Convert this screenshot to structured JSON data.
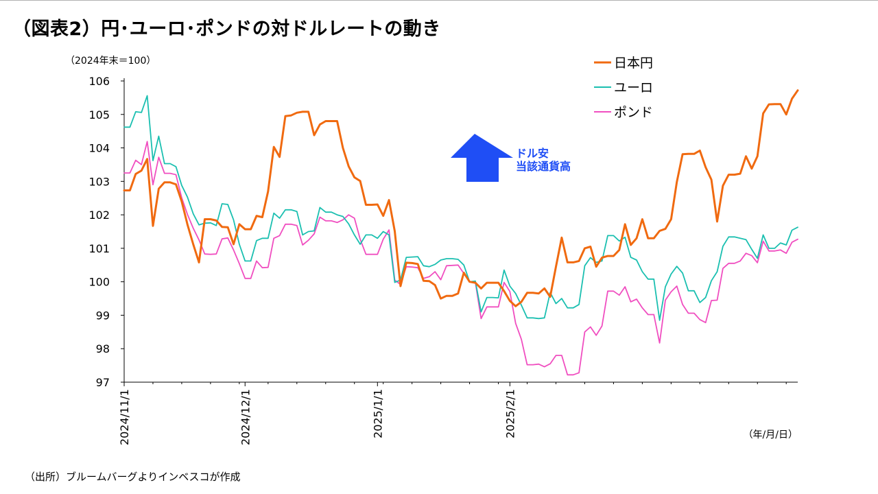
{
  "title": "（図表2）円･ユーロ･ポンドの対ドルレートの動き",
  "source": "（出所）ブルームバーグよりインベスコが作成",
  "chart_data": {
    "type": "line",
    "unit_note": "（2024年末＝100）",
    "x_unit_note": "（年/月/日）",
    "ylim": [
      97,
      106
    ],
    "y_ticks": [
      97,
      98,
      99,
      100,
      101,
      102,
      103,
      104,
      105,
      106
    ],
    "x_ticks": [
      "2024/11/1",
      "2024/12/1",
      "2025/1/1",
      "2025/2/1"
    ],
    "x_tick_index": [
      0,
      21,
      44,
      67
    ],
    "grid": false,
    "legend_position": "top-right",
    "annotation": {
      "text_line1": "ドル安",
      "text_line2": "当該通貨高",
      "direction": "up",
      "color": "#1f4ef5"
    },
    "series": [
      {
        "name": "日本円",
        "color": "#f06a10",
        "values": [
          102.73,
          102.73,
          103.22,
          103.32,
          103.67,
          101.67,
          102.78,
          102.97,
          102.97,
          102.91,
          102.4,
          101.71,
          101.12,
          100.58,
          101.87,
          101.87,
          101.83,
          101.64,
          101.63,
          101.12,
          101.72,
          101.57,
          101.57,
          101.97,
          101.93,
          102.7,
          104.03,
          103.73,
          104.95,
          104.97,
          105.05,
          105.08,
          105.08,
          104.38,
          104.7,
          104.8,
          104.8,
          104.8,
          104.0,
          103.45,
          103.12,
          103.01,
          102.3,
          102.3,
          102.31,
          101.97,
          102.44,
          101.51,
          99.87,
          100.57,
          100.56,
          100.53,
          100.03,
          100.02,
          99.9,
          99.5,
          99.58,
          99.58,
          99.65,
          100.27,
          100.0,
          99.97,
          99.8,
          99.97,
          99.97,
          99.97,
          99.72,
          99.43,
          99.27,
          99.4,
          99.67,
          99.67,
          99.65,
          99.8,
          99.55,
          100.45,
          101.32,
          100.58,
          100.58,
          100.62,
          101.0,
          101.05,
          100.45,
          100.72,
          100.77,
          100.77,
          100.95,
          101.72,
          101.1,
          101.3,
          101.87,
          101.3,
          101.3,
          101.52,
          101.58,
          101.87,
          102.98,
          103.81,
          103.82,
          103.82,
          103.92,
          103.42,
          103.05,
          101.8,
          102.87,
          103.2,
          103.2,
          103.23,
          103.75,
          103.38,
          103.75,
          105.03,
          105.3,
          105.31,
          105.31,
          105.0,
          105.47,
          105.72
        ]
      },
      {
        "name": "ユーロ",
        "color": "#1abfb0",
        "values": [
          104.62,
          104.62,
          105.08,
          105.06,
          105.56,
          103.62,
          104.35,
          103.53,
          103.53,
          103.44,
          102.88,
          102.53,
          102.03,
          101.7,
          101.75,
          101.76,
          101.68,
          102.33,
          102.31,
          101.85,
          101.12,
          100.62,
          100.62,
          101.23,
          101.3,
          101.3,
          102.05,
          101.9,
          102.15,
          102.15,
          102.1,
          101.4,
          101.5,
          101.52,
          102.22,
          102.08,
          102.08,
          102.0,
          101.95,
          101.73,
          101.4,
          101.12,
          101.4,
          101.4,
          101.3,
          101.5,
          101.4,
          99.98,
          100.05,
          100.73,
          100.74,
          100.75,
          100.48,
          100.45,
          100.52,
          100.65,
          100.69,
          100.69,
          100.67,
          100.5,
          100.0,
          100.02,
          99.1,
          99.53,
          99.53,
          99.52,
          100.35,
          99.87,
          99.65,
          99.3,
          98.92,
          98.92,
          98.9,
          98.92,
          99.68,
          99.35,
          99.5,
          99.22,
          99.22,
          99.32,
          100.48,
          100.72,
          100.58,
          100.62,
          101.38,
          101.38,
          101.22,
          101.33,
          100.73,
          100.65,
          100.3,
          100.08,
          100.08,
          98.85,
          99.85,
          100.23,
          100.46,
          100.26,
          99.73,
          99.73,
          99.38,
          99.53,
          100.03,
          100.3,
          101.06,
          101.34,
          101.34,
          101.3,
          101.26,
          100.97,
          100.7,
          101.4,
          101.0,
          101.0,
          101.16,
          101.1,
          101.54,
          101.63
        ]
      },
      {
        "name": "ポンド",
        "color": "#f04ec0",
        "values": [
          103.25,
          103.25,
          103.63,
          103.5,
          104.19,
          102.9,
          103.72,
          103.24,
          103.24,
          103.2,
          102.51,
          102.01,
          101.6,
          101.25,
          100.83,
          100.82,
          100.83,
          101.28,
          101.31,
          100.95,
          100.54,
          100.1,
          100.1,
          100.62,
          100.42,
          100.43,
          101.3,
          101.38,
          101.72,
          101.72,
          101.68,
          101.1,
          101.24,
          101.43,
          101.93,
          101.82,
          101.82,
          101.77,
          101.85,
          102.0,
          101.9,
          101.27,
          100.82,
          100.82,
          100.82,
          101.27,
          101.55,
          100.05,
          99.92,
          100.45,
          100.44,
          100.42,
          100.1,
          100.15,
          100.3,
          100.06,
          100.48,
          100.49,
          100.5,
          100.25,
          100.0,
          99.98,
          98.9,
          99.25,
          99.25,
          99.25,
          99.98,
          99.71,
          98.76,
          98.28,
          97.52,
          97.52,
          97.54,
          97.46,
          97.55,
          97.8,
          97.8,
          97.22,
          97.22,
          97.28,
          98.5,
          98.65,
          98.4,
          98.68,
          99.72,
          99.72,
          99.6,
          99.85,
          99.4,
          99.48,
          99.22,
          99.02,
          99.02,
          98.17,
          99.45,
          99.7,
          99.87,
          99.32,
          99.06,
          99.06,
          98.87,
          98.78,
          99.44,
          99.45,
          100.4,
          100.55,
          100.55,
          100.62,
          100.85,
          100.78,
          100.57,
          101.21,
          100.92,
          100.92,
          100.95,
          100.85,
          101.18,
          101.27
        ]
      }
    ]
  }
}
